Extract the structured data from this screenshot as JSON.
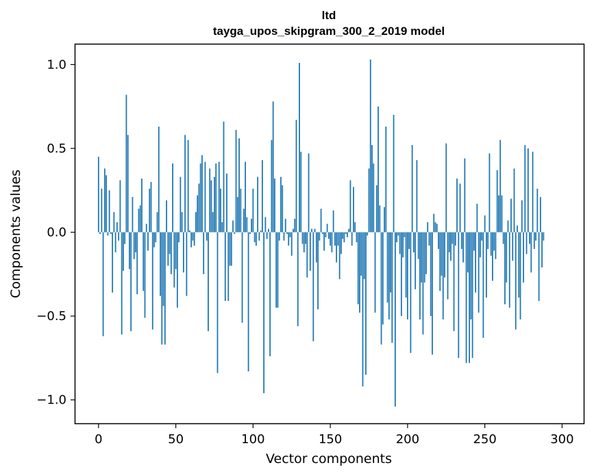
{
  "chart_data": {
    "type": "bar",
    "title": "ltd",
    "subtitle": "tayga_upos_skipgram_300_2_2019 model",
    "xlabel": "Vector components",
    "ylabel": "Components values",
    "xlim": [
      -15,
      314
    ],
    "ylim": [
      -1.14,
      1.12
    ],
    "xticks": [
      0,
      50,
      100,
      150,
      200,
      250,
      300
    ],
    "yticks": [
      1.0,
      0.5,
      0.0,
      -0.5,
      -1.0
    ],
    "ytick_labels": [
      "1.0",
      "0.5",
      "0.0",
      "−0.5",
      "−1.0"
    ],
    "grid": false,
    "bar_color": "#1f77b4",
    "values": [
      0.45,
      -0.01,
      0.26,
      -0.62,
      0.38,
      0.34,
      -0.02,
      0.25,
      -0.01,
      -0.36,
      0.12,
      -0.12,
      0.06,
      -0.05,
      0.31,
      -0.61,
      -0.23,
      -0.07,
      0.82,
      0.58,
      -0.22,
      -0.59,
      0.21,
      -0.16,
      -0.12,
      -0.37,
      0.14,
      0.16,
      0.32,
      -0.35,
      -0.51,
      0.05,
      -0.11,
      0.26,
      0.3,
      -0.58,
      -0.09,
      -0.06,
      0.12,
      0.63,
      -0.38,
      -0.67,
      -0.44,
      -0.67,
      0.19,
      -0.2,
      -0.13,
      -0.25,
      0.41,
      -0.33,
      -0.22,
      -0.45,
      -0.06,
      0.33,
      0.12,
      -0.24,
      0.58,
      -0.38,
      0.55,
      0.01,
      -0.09,
      -0.05,
      -0.08,
      0.12,
      0.22,
      0.29,
      0.41,
      0.46,
      -0.25,
      0.42,
      -0.05,
      -0.59,
      0.38,
      0.31,
      0.12,
      0.33,
      0.41,
      -0.84,
      0.42,
      0.26,
      0.06,
      0.66,
      -0.41,
      0.35,
      -0.41,
      -0.2,
      -0.2,
      0.07,
      -0.01,
      0.61,
      0.21,
      0.56,
      0.26,
      -0.54,
      0.14,
      0.42,
      0.09,
      -0.83,
      -0.01,
      0.08,
      0.26,
      -0.06,
      -0.08,
      0.33,
      -0.05,
      0.01,
      0.43,
      -0.96,
      0.09,
      -0.04,
      0.02,
      -0.74,
      0.55,
      0.78,
      0.32,
      -0.45,
      -0.45,
      -0.05,
      0.33,
      0.28,
      -0.05,
      0.08,
      -0.01,
      -0.08,
      -0.03,
      -0.14,
      0.02,
      0.08,
      0.67,
      -0.56,
      1.01,
      0.48,
      -0.07,
      -0.12,
      -0.07,
      -0.27,
      0.47,
      -0.23,
      0.02,
      -0.65,
      0.02,
      -0.18,
      -0.46,
      -0.05,
      0.14,
      -0.01,
      -0.11,
      -0.03,
      0.05,
      -0.04,
      -0.08,
      -0.12,
      0.13,
      -0.08,
      -0.18,
      -0.08,
      -0.28,
      -0.13,
      -0.04,
      -0.06,
      -0.01,
      -0.03,
      0.02,
      0.31,
      -0.08,
      0.27,
      0.06,
      -0.06,
      -0.43,
      -0.48,
      -0.26,
      -0.92,
      -0.28,
      -0.85,
      -0.02,
      0.38,
      1.03,
      0.52,
      0.41,
      -0.48,
      0.28,
      0.75,
      0.16,
      -0.67,
      -0.55,
      0.15,
      0.63,
      -0.42,
      -0.52,
      -0.36,
      -0.66,
      0.7,
      -1.04,
      -0.06,
      -0.02,
      -0.13,
      -0.5,
      -0.15,
      -0.03,
      -0.39,
      -0.52,
      -0.1,
      -0.72,
      0.52,
      -0.12,
      -0.34,
      0.43,
      -0.16,
      -0.52,
      -0.3,
      -0.61,
      -0.3,
      -0.25,
      0.06,
      -0.08,
      -0.5,
      -0.73,
      0.11,
      0.06,
      0.05,
      -0.1,
      -0.35,
      -0.26,
      -0.52,
      -0.27,
      0.53,
      -0.4,
      -0.12,
      -0.17,
      -0.07,
      -0.59,
      -0.08,
      0.32,
      -0.75,
      0.29,
      -0.1,
      -0.18,
      0.44,
      -0.78,
      -0.24,
      -0.78,
      -0.52,
      -0.75,
      -0.11,
      -0.36,
      0.17,
      -0.48,
      -0.15,
      -0.05,
      -0.63,
      0.1,
      -0.39,
      -0.1,
      0.47,
      -0.14,
      -0.29,
      -0.11,
      -0.16,
      0.37,
      0.22,
      0.55,
      0.22,
      -0.07,
      -0.43,
      -0.3,
      0.07,
      -0.45,
      0.2,
      -0.17,
      0.38,
      -0.58,
      0.04,
      -0.39,
      -0.52,
      0.19,
      -0.3,
      0.52,
      -0.13,
      0.5,
      -0.07,
      -0.24,
      0.48,
      -0.1,
      -0.05,
      0.26,
      -0.41,
      0.21,
      -0.21,
      -0.05
    ]
  }
}
